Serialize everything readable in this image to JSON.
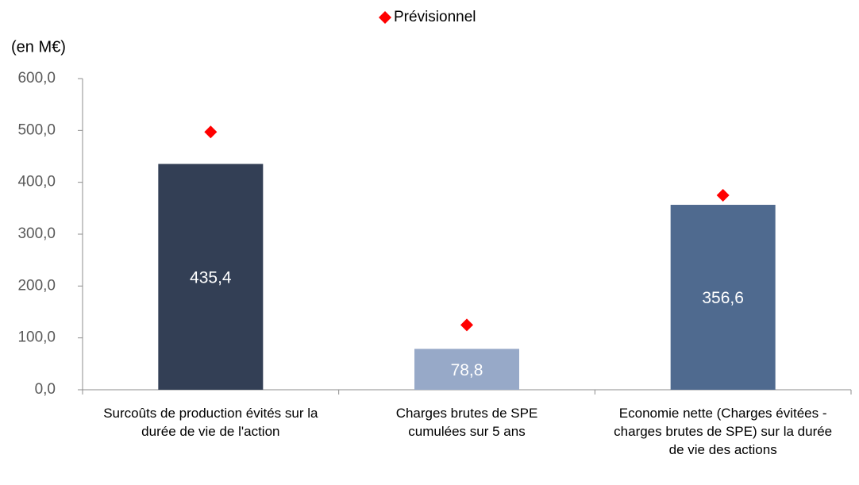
{
  "chart_data": {
    "type": "bar",
    "y_axis_label": "(en M€)",
    "categories": [
      "Surcoûts de production évités sur la durée de vie de l'action",
      "Charges brutes de SPE cumulées sur 5 ans",
      "Economie nette (Charges évitées - charges brutes  de SPE) sur la durée de vie des actions"
    ],
    "series": [
      {
        "type": "bar",
        "colors": [
          "#333f55",
          "#97a9c8",
          "#4f6a8f"
        ],
        "values": [
          435.4,
          78.8,
          356.6
        ],
        "value_labels": [
          "435,4",
          "78,8",
          "356,6"
        ]
      },
      {
        "type": "marker",
        "name": "Prévisionnel",
        "color": "#ff0000",
        "marker": "diamond",
        "values": [
          497,
          125,
          375
        ]
      }
    ],
    "ylim": [
      0,
      600
    ],
    "yticks": [
      {
        "value": 0,
        "label": "0,0"
      },
      {
        "value": 100,
        "label": "100,0"
      },
      {
        "value": 200,
        "label": "200,0"
      },
      {
        "value": 300,
        "label": "300,0"
      },
      {
        "value": 400,
        "label": "400,0"
      },
      {
        "value": 500,
        "label": "500,0"
      },
      {
        "value": 600,
        "label": "600,0"
      }
    ],
    "grid": false,
    "legend": "top"
  }
}
